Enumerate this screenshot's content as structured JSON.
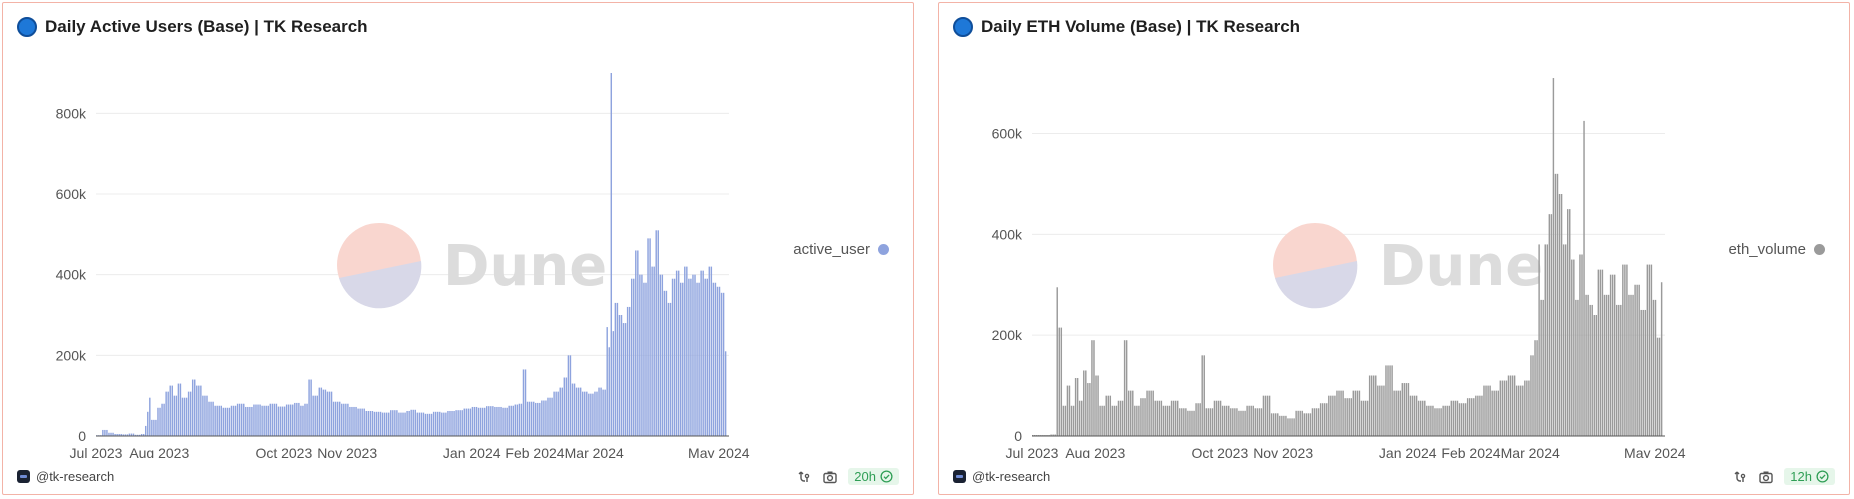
{
  "panels": [
    {
      "title": "Daily Active Users (Base) | TK Research",
      "author": "@tk-research",
      "refresh": "20h",
      "watermark": "Dune",
      "legend_label": "active_user",
      "color": "#8ea3de"
    },
    {
      "title": "Daily ETH Volume (Base) | TK Research",
      "author": "@tk-research",
      "refresh": "12h",
      "watermark": "Dune",
      "legend_label": "eth_volume",
      "color": "#9a9a9a"
    }
  ],
  "chart_data": [
    {
      "type": "bar",
      "title": "Daily Active Users (Base) | TK Research",
      "xlabel": "",
      "ylabel": "",
      "ylim": [
        0,
        900000
      ],
      "y_ticks": [
        "0",
        "200k",
        "400k",
        "600k",
        "800k"
      ],
      "y_tick_values": [
        0,
        200000,
        400000,
        600000,
        800000
      ],
      "x_ticks": [
        "Jul 2023",
        "Aug 2023",
        "Oct 2023",
        "Nov 2023",
        "Jan 2024",
        "Feb 2024",
        "Mar 2024",
        "May 2024"
      ],
      "x_range": [
        "2023-07-01",
        "2024-05-06"
      ],
      "x_tick_dates": [
        "2023-07-01",
        "2023-08-01",
        "2023-10-01",
        "2023-11-01",
        "2024-01-01",
        "2024-02-01",
        "2024-03-01",
        "2024-05-01"
      ],
      "legend": "right",
      "grid": true,
      "series": [
        {
          "name": "active_user",
          "color": "#8ea3de",
          "points": [
            [
              "2023-07-01",
              2000
            ],
            [
              "2023-07-04",
              15000
            ],
            [
              "2023-07-07",
              8000
            ],
            [
              "2023-07-10",
              5000
            ],
            [
              "2023-07-14",
              4000
            ],
            [
              "2023-07-17",
              6000
            ],
            [
              "2023-07-20",
              3000
            ],
            [
              "2023-07-23",
              5000
            ],
            [
              "2023-07-25",
              25000
            ],
            [
              "2023-07-26",
              60000
            ],
            [
              "2023-07-27",
              95000
            ],
            [
              "2023-07-28",
              40000
            ],
            [
              "2023-07-31",
              70000
            ],
            [
              "2023-08-02",
              80000
            ],
            [
              "2023-08-04",
              110000
            ],
            [
              "2023-08-06",
              125000
            ],
            [
              "2023-08-08",
              100000
            ],
            [
              "2023-08-10",
              130000
            ],
            [
              "2023-08-12",
              95000
            ],
            [
              "2023-08-15",
              110000
            ],
            [
              "2023-08-17",
              140000
            ],
            [
              "2023-08-19",
              125000
            ],
            [
              "2023-08-22",
              100000
            ],
            [
              "2023-08-25",
              85000
            ],
            [
              "2023-08-28",
              75000
            ],
            [
              "2023-09-01",
              70000
            ],
            [
              "2023-09-05",
              75000
            ],
            [
              "2023-09-08",
              80000
            ],
            [
              "2023-09-12",
              72000
            ],
            [
              "2023-09-16",
              78000
            ],
            [
              "2023-09-20",
              75000
            ],
            [
              "2023-09-24",
              80000
            ],
            [
              "2023-09-28",
              73000
            ],
            [
              "2023-10-02",
              78000
            ],
            [
              "2023-10-06",
              82000
            ],
            [
              "2023-10-09",
              75000
            ],
            [
              "2023-10-11",
              80000
            ],
            [
              "2023-10-13",
              140000
            ],
            [
              "2023-10-15",
              100000
            ],
            [
              "2023-10-18",
              120000
            ],
            [
              "2023-10-20",
              115000
            ],
            [
              "2023-10-22",
              110000
            ],
            [
              "2023-10-25",
              85000
            ],
            [
              "2023-10-29",
              80000
            ],
            [
              "2023-11-02",
              72000
            ],
            [
              "2023-11-06",
              68000
            ],
            [
              "2023-11-10",
              62000
            ],
            [
              "2023-11-14",
              60000
            ],
            [
              "2023-11-18",
              58000
            ],
            [
              "2023-11-22",
              64000
            ],
            [
              "2023-11-26",
              58000
            ],
            [
              "2023-11-30",
              62000
            ],
            [
              "2023-12-02",
              65000
            ],
            [
              "2023-12-05",
              58000
            ],
            [
              "2023-12-09",
              55000
            ],
            [
              "2023-12-13",
              60000
            ],
            [
              "2023-12-17",
              58000
            ],
            [
              "2023-12-20",
              62000
            ],
            [
              "2023-12-24",
              64000
            ],
            [
              "2023-12-28",
              68000
            ],
            [
              "2024-01-01",
              72000
            ],
            [
              "2024-01-04",
              70000
            ],
            [
              "2024-01-08",
              74000
            ],
            [
              "2024-01-12",
              72000
            ],
            [
              "2024-01-16",
              70000
            ],
            [
              "2024-01-19",
              75000
            ],
            [
              "2024-01-22",
              78000
            ],
            [
              "2024-01-24",
              80000
            ],
            [
              "2024-01-26",
              165000
            ],
            [
              "2024-01-28",
              85000
            ],
            [
              "2024-02-01",
              82000
            ],
            [
              "2024-02-04",
              88000
            ],
            [
              "2024-02-07",
              95000
            ],
            [
              "2024-02-10",
              110000
            ],
            [
              "2024-02-13",
              120000
            ],
            [
              "2024-02-15",
              145000
            ],
            [
              "2024-02-17",
              200000
            ],
            [
              "2024-02-19",
              130000
            ],
            [
              "2024-02-21",
              120000
            ],
            [
              "2024-02-24",
              110000
            ],
            [
              "2024-02-27",
              105000
            ],
            [
              "2024-03-01",
              110000
            ],
            [
              "2024-03-03",
              120000
            ],
            [
              "2024-03-05",
              115000
            ],
            [
              "2024-03-07",
              270000
            ],
            [
              "2024-03-08",
              220000
            ],
            [
              "2024-03-09",
              900000
            ],
            [
              "2024-03-10",
              260000
            ],
            [
              "2024-03-11",
              330000
            ],
            [
              "2024-03-13",
              300000
            ],
            [
              "2024-03-15",
              280000
            ],
            [
              "2024-03-17",
              320000
            ],
            [
              "2024-03-19",
              390000
            ],
            [
              "2024-03-21",
              460000
            ],
            [
              "2024-03-23",
              400000
            ],
            [
              "2024-03-25",
              380000
            ],
            [
              "2024-03-27",
              490000
            ],
            [
              "2024-03-29",
              420000
            ],
            [
              "2024-03-31",
              510000
            ],
            [
              "2024-04-02",
              400000
            ],
            [
              "2024-04-04",
              360000
            ],
            [
              "2024-04-06",
              330000
            ],
            [
              "2024-04-08",
              390000
            ],
            [
              "2024-04-10",
              410000
            ],
            [
              "2024-04-12",
              380000
            ],
            [
              "2024-04-14",
              420000
            ],
            [
              "2024-04-16",
              390000
            ],
            [
              "2024-04-18",
              400000
            ],
            [
              "2024-04-20",
              380000
            ],
            [
              "2024-04-22",
              410000
            ],
            [
              "2024-04-24",
              390000
            ],
            [
              "2024-04-26",
              420000
            ],
            [
              "2024-04-28",
              380000
            ],
            [
              "2024-04-30",
              370000
            ],
            [
              "2024-05-02",
              355000
            ],
            [
              "2024-05-04",
              210000
            ]
          ]
        }
      ]
    },
    {
      "type": "bar",
      "title": "Daily ETH Volume (Base) | TK Research",
      "xlabel": "",
      "ylabel": "",
      "ylim": [
        0,
        720000
      ],
      "y_ticks": [
        "0",
        "200k",
        "400k",
        "600k"
      ],
      "y_tick_values": [
        0,
        200000,
        400000,
        600000
      ],
      "x_ticks": [
        "Jul 2023",
        "Aug 2023",
        "Oct 2023",
        "Nov 2023",
        "Jan 2024",
        "Feb 2024",
        "Mar 2024",
        "May 2024"
      ],
      "x_range": [
        "2023-07-01",
        "2024-05-06"
      ],
      "x_tick_dates": [
        "2023-07-01",
        "2023-08-01",
        "2023-10-01",
        "2023-11-01",
        "2024-01-01",
        "2024-02-01",
        "2024-03-01",
        "2024-05-01"
      ],
      "legend": "right",
      "grid": true,
      "series": [
        {
          "name": "eth_volume",
          "color": "#9a9a9a",
          "points": [
            [
              "2023-07-01",
              2000
            ],
            [
              "2023-07-10",
              3000
            ],
            [
              "2023-07-13",
              295000
            ],
            [
              "2023-07-14",
              215000
            ],
            [
              "2023-07-16",
              60000
            ],
            [
              "2023-07-18",
              100000
            ],
            [
              "2023-07-20",
              60000
            ],
            [
              "2023-07-22",
              115000
            ],
            [
              "2023-07-24",
              70000
            ],
            [
              "2023-07-26",
              130000
            ],
            [
              "2023-07-28",
              105000
            ],
            [
              "2023-07-30",
              190000
            ],
            [
              "2023-08-01",
              120000
            ],
            [
              "2023-08-03",
              60000
            ],
            [
              "2023-08-06",
              80000
            ],
            [
              "2023-08-09",
              60000
            ],
            [
              "2023-08-12",
              70000
            ],
            [
              "2023-08-15",
              190000
            ],
            [
              "2023-08-17",
              90000
            ],
            [
              "2023-08-20",
              60000
            ],
            [
              "2023-08-23",
              75000
            ],
            [
              "2023-08-26",
              90000
            ],
            [
              "2023-08-30",
              70000
            ],
            [
              "2023-09-03",
              60000
            ],
            [
              "2023-09-07",
              70000
            ],
            [
              "2023-09-11",
              55000
            ],
            [
              "2023-09-15",
              50000
            ],
            [
              "2023-09-19",
              65000
            ],
            [
              "2023-09-22",
              160000
            ],
            [
              "2023-09-24",
              55000
            ],
            [
              "2023-09-28",
              70000
            ],
            [
              "2023-10-02",
              60000
            ],
            [
              "2023-10-06",
              55000
            ],
            [
              "2023-10-10",
              50000
            ],
            [
              "2023-10-14",
              60000
            ],
            [
              "2023-10-18",
              55000
            ],
            [
              "2023-10-22",
              80000
            ],
            [
              "2023-10-26",
              45000
            ],
            [
              "2023-10-30",
              40000
            ],
            [
              "2023-11-03",
              35000
            ],
            [
              "2023-11-07",
              50000
            ],
            [
              "2023-11-11",
              45000
            ],
            [
              "2023-11-15",
              55000
            ],
            [
              "2023-11-19",
              65000
            ],
            [
              "2023-11-23",
              80000
            ],
            [
              "2023-11-27",
              90000
            ],
            [
              "2023-12-01",
              75000
            ],
            [
              "2023-12-05",
              90000
            ],
            [
              "2023-12-09",
              70000
            ],
            [
              "2023-12-13",
              120000
            ],
            [
              "2023-12-17",
              100000
            ],
            [
              "2023-12-21",
              140000
            ],
            [
              "2023-12-25",
              90000
            ],
            [
              "2023-12-29",
              105000
            ],
            [
              "2024-01-02",
              80000
            ],
            [
              "2024-01-06",
              70000
            ],
            [
              "2024-01-10",
              60000
            ],
            [
              "2024-01-14",
              55000
            ],
            [
              "2024-01-18",
              60000
            ],
            [
              "2024-01-22",
              70000
            ],
            [
              "2024-01-26",
              65000
            ],
            [
              "2024-01-30",
              75000
            ],
            [
              "2024-02-03",
              80000
            ],
            [
              "2024-02-07",
              100000
            ],
            [
              "2024-02-11",
              90000
            ],
            [
              "2024-02-15",
              110000
            ],
            [
              "2024-02-19",
              120000
            ],
            [
              "2024-02-23",
              100000
            ],
            [
              "2024-02-27",
              110000
            ],
            [
              "2024-03-01",
              160000
            ],
            [
              "2024-03-03",
              190000
            ],
            [
              "2024-03-05",
              380000
            ],
            [
              "2024-03-06",
              270000
            ],
            [
              "2024-03-08",
              380000
            ],
            [
              "2024-03-10",
              440000
            ],
            [
              "2024-03-12",
              710000
            ],
            [
              "2024-03-13",
              520000
            ],
            [
              "2024-03-15",
              480000
            ],
            [
              "2024-03-17",
              380000
            ],
            [
              "2024-03-19",
              450000
            ],
            [
              "2024-03-21",
              350000
            ],
            [
              "2024-03-23",
              270000
            ],
            [
              "2024-03-25",
              360000
            ],
            [
              "2024-03-27",
              625000
            ],
            [
              "2024-03-28",
              280000
            ],
            [
              "2024-03-30",
              260000
            ],
            [
              "2024-04-01",
              240000
            ],
            [
              "2024-04-03",
              330000
            ],
            [
              "2024-04-06",
              280000
            ],
            [
              "2024-04-09",
              320000
            ],
            [
              "2024-04-12",
              260000
            ],
            [
              "2024-04-15",
              340000
            ],
            [
              "2024-04-18",
              280000
            ],
            [
              "2024-04-21",
              300000
            ],
            [
              "2024-04-24",
              250000
            ],
            [
              "2024-04-27",
              340000
            ],
            [
              "2024-04-30",
              270000
            ],
            [
              "2024-05-02",
              195000
            ],
            [
              "2024-05-04",
              305000
            ]
          ]
        }
      ]
    }
  ]
}
